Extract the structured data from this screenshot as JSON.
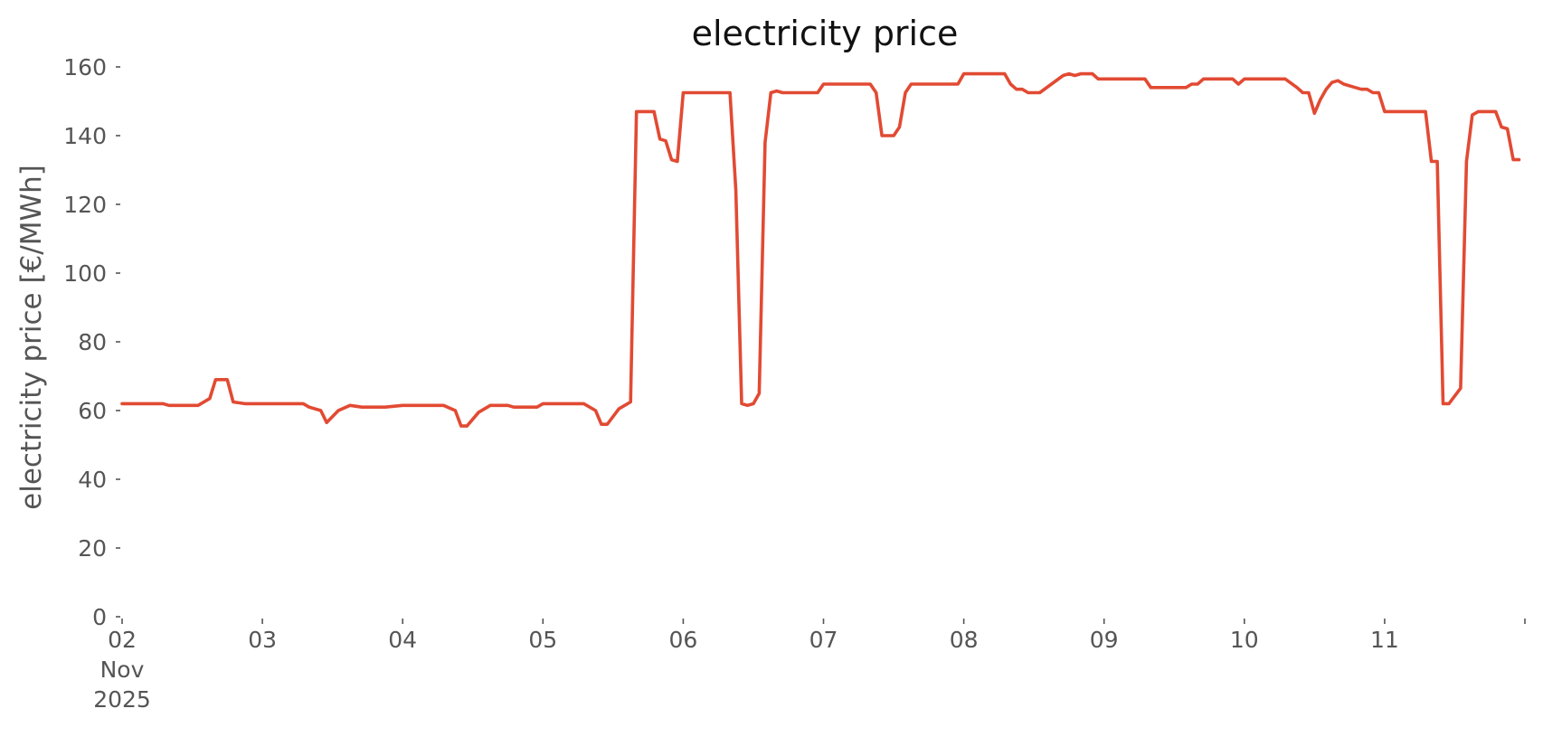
{
  "chart_data": {
    "type": "line",
    "title": "electricity price",
    "xlabel": "",
    "ylabel": "electricity price [€/MWh]",
    "ylim": [
      0,
      165
    ],
    "xlim": [
      "2025-11-02",
      "2025-11-12"
    ],
    "grid": false,
    "legend": "none",
    "y_ticks": [
      0,
      20,
      40,
      60,
      80,
      100,
      120,
      140,
      160
    ],
    "x_ticks": [
      {
        "date": "2025-11-02",
        "lines": [
          "02",
          "Nov",
          "2025"
        ]
      },
      {
        "date": "2025-11-03",
        "lines": [
          "03"
        ]
      },
      {
        "date": "2025-11-04",
        "lines": [
          "04"
        ]
      },
      {
        "date": "2025-11-05",
        "lines": [
          "05"
        ]
      },
      {
        "date": "2025-11-06",
        "lines": [
          "06"
        ]
      },
      {
        "date": "2025-11-07",
        "lines": [
          "07"
        ]
      },
      {
        "date": "2025-11-08",
        "lines": [
          "08"
        ]
      },
      {
        "date": "2025-11-09",
        "lines": [
          "09"
        ]
      },
      {
        "date": "2025-11-10",
        "lines": [
          "10"
        ]
      },
      {
        "date": "2025-11-11",
        "lines": [
          "11"
        ]
      },
      {
        "date": "2025-11-12",
        "lines": [
          ""
        ]
      }
    ],
    "series": [
      {
        "color": "#e24a33",
        "points": [
          [
            "2025-11-02 00:00",
            62
          ],
          [
            "2025-11-02 07:00",
            62
          ],
          [
            "2025-11-02 08:00",
            61.5
          ],
          [
            "2025-11-02 13:00",
            61.5
          ],
          [
            "2025-11-02 15:00",
            63.5
          ],
          [
            "2025-11-02 16:00",
            69
          ],
          [
            "2025-11-02 18:00",
            69
          ],
          [
            "2025-11-02 19:00",
            62.5
          ],
          [
            "2025-11-02 21:00",
            62
          ],
          [
            "2025-11-03 07:00",
            62
          ],
          [
            "2025-11-03 08:00",
            61
          ],
          [
            "2025-11-03 10:00",
            60
          ],
          [
            "2025-11-03 11:00",
            56.5
          ],
          [
            "2025-11-03 13:00",
            60
          ],
          [
            "2025-11-03 15:00",
            61.5
          ],
          [
            "2025-11-03 17:00",
            61
          ],
          [
            "2025-11-03 21:00",
            61
          ],
          [
            "2025-11-04 00:00",
            61.5
          ],
          [
            "2025-11-04 07:00",
            61.5
          ],
          [
            "2025-11-04 09:00",
            60
          ],
          [
            "2025-11-04 10:00",
            55.5
          ],
          [
            "2025-11-04 11:00",
            55.5
          ],
          [
            "2025-11-04 13:00",
            59.5
          ],
          [
            "2025-11-04 15:00",
            61.5
          ],
          [
            "2025-11-04 18:00",
            61.5
          ],
          [
            "2025-11-04 19:00",
            61
          ],
          [
            "2025-11-04 23:00",
            61
          ],
          [
            "2025-11-05 00:00",
            62
          ],
          [
            "2025-11-05 07:00",
            62
          ],
          [
            "2025-11-05 09:00",
            60
          ],
          [
            "2025-11-05 10:00",
            56
          ],
          [
            "2025-11-05 11:00",
            56
          ],
          [
            "2025-11-05 13:00",
            60.5
          ],
          [
            "2025-11-05 15:00",
            62.5
          ],
          [
            "2025-11-05 16:00",
            147
          ],
          [
            "2025-11-05 19:00",
            147
          ],
          [
            "2025-11-05 20:00",
            139
          ],
          [
            "2025-11-05 21:00",
            138.5
          ],
          [
            "2025-11-05 22:00",
            133
          ],
          [
            "2025-11-05 23:00",
            132.5
          ],
          [
            "2025-11-06 00:00",
            152.5
          ],
          [
            "2025-11-06 08:00",
            152.5
          ],
          [
            "2025-11-06 09:00",
            124
          ],
          [
            "2025-11-06 10:00",
            62
          ],
          [
            "2025-11-06 11:00",
            61.5
          ],
          [
            "2025-11-06 12:00",
            62
          ],
          [
            "2025-11-06 13:00",
            65
          ],
          [
            "2025-11-06 14:00",
            138
          ],
          [
            "2025-11-06 15:00",
            152.5
          ],
          [
            "2025-11-06 16:00",
            153
          ],
          [
            "2025-11-06 17:00",
            152.5
          ],
          [
            "2025-11-06 23:00",
            152.5
          ],
          [
            "2025-11-07 00:00",
            155
          ],
          [
            "2025-11-07 08:00",
            155
          ],
          [
            "2025-11-07 09:00",
            152.5
          ],
          [
            "2025-11-07 10:00",
            140
          ],
          [
            "2025-11-07 12:00",
            140
          ],
          [
            "2025-11-07 13:00",
            142.5
          ],
          [
            "2025-11-07 14:00",
            152.5
          ],
          [
            "2025-11-07 15:00",
            155
          ],
          [
            "2025-11-07 23:00",
            155
          ],
          [
            "2025-11-08 00:00",
            158
          ],
          [
            "2025-11-08 07:00",
            158
          ],
          [
            "2025-11-08 08:00",
            155
          ],
          [
            "2025-11-08 09:00",
            153.5
          ],
          [
            "2025-11-08 10:00",
            153.5
          ],
          [
            "2025-11-08 11:00",
            152.5
          ],
          [
            "2025-11-08 13:00",
            152.5
          ],
          [
            "2025-11-08 15:00",
            155
          ],
          [
            "2025-11-08 17:00",
            157.5
          ],
          [
            "2025-11-08 18:00",
            158
          ],
          [
            "2025-11-08 19:00",
            157.5
          ],
          [
            "2025-11-08 20:00",
            158
          ],
          [
            "2025-11-08 22:00",
            158
          ],
          [
            "2025-11-08 23:00",
            156.5
          ],
          [
            "2025-11-09 07:00",
            156.5
          ],
          [
            "2025-11-09 08:00",
            154
          ],
          [
            "2025-11-09 14:00",
            154
          ],
          [
            "2025-11-09 15:00",
            155
          ],
          [
            "2025-11-09 16:00",
            155
          ],
          [
            "2025-11-09 17:00",
            156.5
          ],
          [
            "2025-11-09 22:00",
            156.5
          ],
          [
            "2025-11-09 23:00",
            155
          ],
          [
            "2025-11-10 00:00",
            156.5
          ],
          [
            "2025-11-10 07:00",
            156.5
          ],
          [
            "2025-11-10 09:00",
            154
          ],
          [
            "2025-11-10 10:00",
            152.5
          ],
          [
            "2025-11-10 11:00",
            152.5
          ],
          [
            "2025-11-10 12:00",
            146.5
          ],
          [
            "2025-11-10 13:00",
            150.5
          ],
          [
            "2025-11-10 14:00",
            153.5
          ],
          [
            "2025-11-10 15:00",
            155.5
          ],
          [
            "2025-11-10 16:00",
            156
          ],
          [
            "2025-11-10 17:00",
            155
          ],
          [
            "2025-11-10 19:00",
            154
          ],
          [
            "2025-11-10 20:00",
            153.5
          ],
          [
            "2025-11-10 21:00",
            153.5
          ],
          [
            "2025-11-10 22:00",
            152.5
          ],
          [
            "2025-11-10 23:00",
            152.5
          ],
          [
            "2025-11-11 00:00",
            147
          ],
          [
            "2025-11-11 07:00",
            147
          ],
          [
            "2025-11-11 08:00",
            132.5
          ],
          [
            "2025-11-11 09:00",
            132.5
          ],
          [
            "2025-11-11 10:00",
            62
          ],
          [
            "2025-11-11 11:00",
            62
          ],
          [
            "2025-11-11 13:00",
            66.5
          ],
          [
            "2025-11-11 14:00",
            132.5
          ],
          [
            "2025-11-11 15:00",
            146
          ],
          [
            "2025-11-11 16:00",
            147
          ],
          [
            "2025-11-11 19:00",
            147
          ],
          [
            "2025-11-11 20:00",
            142.5
          ],
          [
            "2025-11-11 21:00",
            142
          ],
          [
            "2025-11-11 22:00",
            133
          ],
          [
            "2025-11-11 23:00",
            133
          ]
        ]
      }
    ]
  }
}
